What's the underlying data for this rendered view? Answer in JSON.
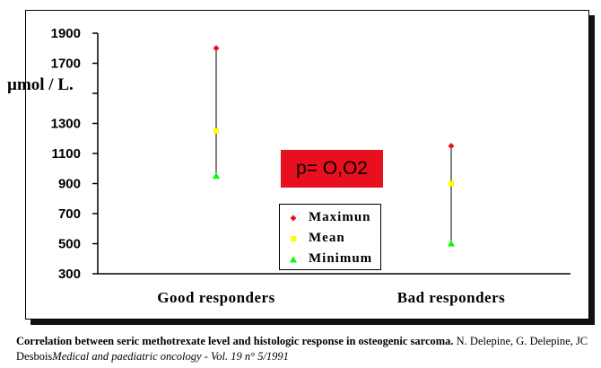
{
  "chart_data": {
    "type": "scatter",
    "categories": [
      "Good responders",
      "Bad responders"
    ],
    "ylabel": "µmol / L.",
    "ylim": [
      300,
      1900
    ],
    "yticks": [
      300,
      500,
      700,
      900,
      1100,
      1300,
      1500,
      1700,
      1900
    ],
    "ytick_labels": [
      "300",
      "500",
      "700",
      "900",
      "1100",
      "1300",
      "",
      "1700",
      "1900"
    ],
    "series": [
      {
        "name": "Maximun",
        "color": "#e8101e",
        "marker": "diamond",
        "values": [
          1800,
          1150
        ]
      },
      {
        "name": "Mean",
        "color": "#ffff00",
        "marker": "square",
        "values": [
          1250,
          900
        ]
      },
      {
        "name": "Minimum",
        "color": "#00ff00",
        "marker": "triangle",
        "values": [
          950,
          500
        ]
      }
    ],
    "annotation": "p= O,O2",
    "legend_position": "center-bottom"
  },
  "caption": {
    "bold": "Correlation between seric methotrexate level and histologic response in osteogenic sarcoma.",
    "plain": " N. Delepine, G. Delepine,  JC Desbois",
    "italic": "Medical and paediatric oncology - Vol. 19 n° 5/1991"
  }
}
